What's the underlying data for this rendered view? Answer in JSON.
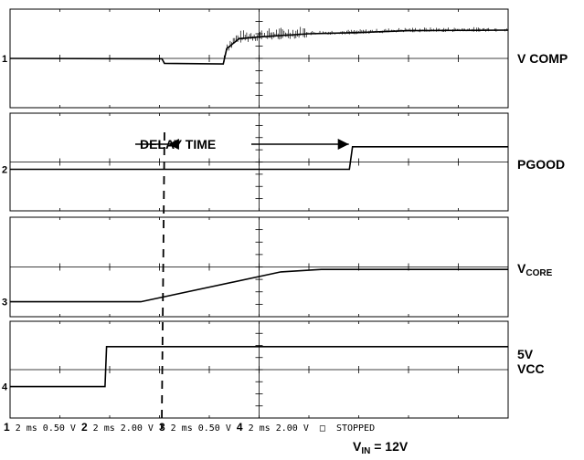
{
  "chart_data": {
    "type": "line",
    "instrument": "oscilloscope",
    "divisions": {
      "x": 10,
      "y": 8
    },
    "channels": [
      {
        "id": 1,
        "name": "V COMP",
        "scale": "2 ms 0.50 V",
        "ground_marker": "1",
        "trace": [
          [
            0,
            4.0
          ],
          [
            3.05,
            3.97
          ],
          [
            3.1,
            3.6
          ],
          [
            4.28,
            3.55
          ],
          [
            4.35,
            4.8
          ],
          [
            4.6,
            5.6
          ],
          [
            5.0,
            5.75
          ],
          [
            6.0,
            6.0
          ],
          [
            7.0,
            6.1
          ],
          [
            8.0,
            6.25
          ],
          [
            10.0,
            6.3
          ]
        ],
        "noise_region_div": [
          4.3,
          10.0
        ]
      },
      {
        "id": 2,
        "name": "PGOOD",
        "scale": "2 ms 2.00 V",
        "ground_marker": "2",
        "trace": [
          [
            0,
            3.4
          ],
          [
            10.9,
            3.4
          ],
          [
            11.0,
            5.25
          ],
          [
            16.0,
            5.25
          ]
        ],
        "note": "x in div, channel drawn in own panel; see script mapping"
      },
      {
        "id": 3,
        "name": "V",
        "name_sub": "CORE",
        "scale": "2 ms 0.50 V",
        "ground_marker": "3",
        "trace": [
          [
            0,
            1.2
          ],
          [
            4.2,
            1.2
          ],
          [
            8.7,
            3.6
          ],
          [
            10.0,
            3.8
          ],
          [
            16.0,
            3.8
          ]
        ]
      },
      {
        "id": 4,
        "name": "5V",
        "name_line2": "VCC",
        "scale": "2 ms 2.00 V",
        "ground_marker": "4",
        "trace": [
          [
            0,
            2.6
          ],
          [
            3.05,
            2.6
          ],
          [
            3.1,
            5.9
          ],
          [
            16.0,
            5.9
          ]
        ]
      }
    ],
    "annotation": {
      "text": "DELAY TIME",
      "from_div": 3.1,
      "to_div": 11.0
    },
    "status": "STOPPED",
    "footer_channels": [
      {
        "num": "1",
        "text": " 2 ms 0.50 V "
      },
      {
        "num": "2",
        "text": " 2 ms 2.00 V "
      },
      {
        "num": "3",
        "text": " 2 ms 0.50 V "
      },
      {
        "num": "4",
        "text": " 2 ms 2.00 V "
      }
    ],
    "footer_tail": " □  STOPPED",
    "vin": {
      "main": "V",
      "sub": "IN",
      "rest": " = 12V"
    }
  }
}
